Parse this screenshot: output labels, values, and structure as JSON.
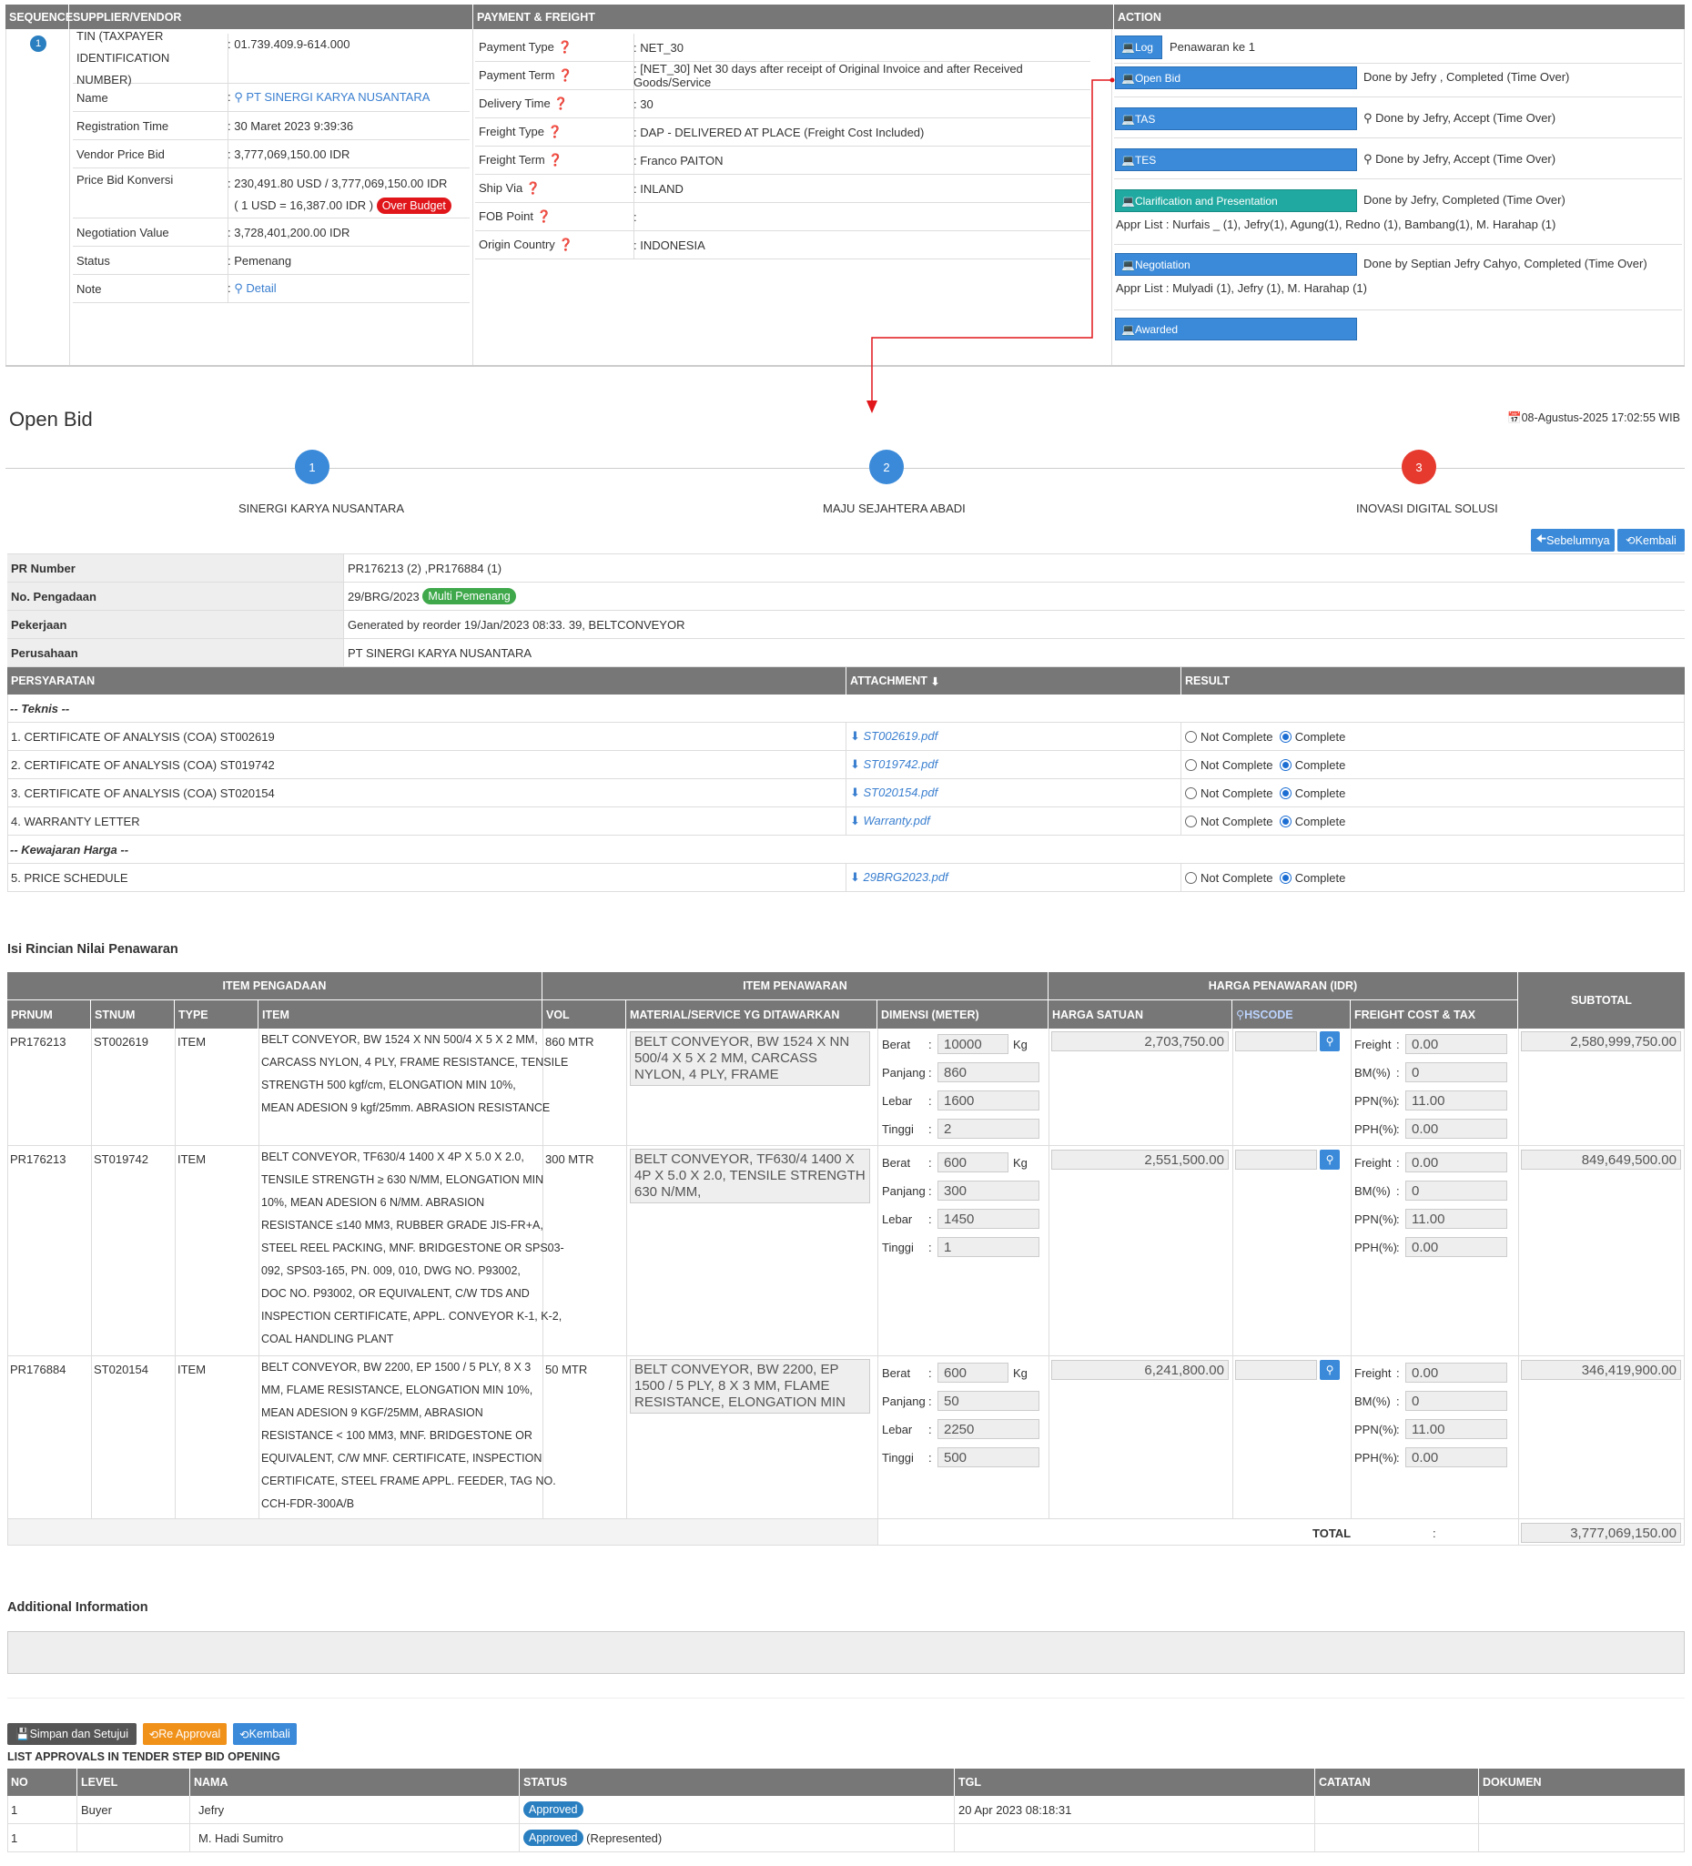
{
  "summary": {
    "headers": {
      "sequence": "SEQUENCE",
      "supplier": "SUPPLIER/VENDOR",
      "payment": "PAYMENT & FREIGHT",
      "action": "ACTION"
    },
    "seq_number": "1",
    "vendor": [
      {
        "key": "TIN (TAXPAYER IDENTIFICATION NUMBER)",
        "value": "01.739.409.9-614.000"
      },
      {
        "key": "Name",
        "value": "PT SINERGI KARYA NUSANTARA"
      },
      {
        "key": "Registration Time",
        "value": "30 Maret 2023 9:39:36"
      },
      {
        "key": "Vendor Price Bid",
        "value": "3,777,069,150.00 IDR"
      },
      {
        "key": "Price Bid Konversi",
        "value": "230,491.80 USD / 3,777,069,150.00 IDR",
        "value2": "( 1 USD = 16,387.00 IDR )",
        "badge": "Over Budget"
      },
      {
        "key": "Negotiation Value",
        "value": "3,728,401,200.00 IDR"
      },
      {
        "key": "Status",
        "value": "Pemenang"
      },
      {
        "key": "Note",
        "value": "Detail"
      }
    ],
    "payment": [
      {
        "key": "Payment Type",
        "value": "NET_30"
      },
      {
        "key": "Payment Term",
        "value": "[NET_30] Net 30 days after receipt of Original Invoice and after Received Goods/Service"
      },
      {
        "key": "Delivery Time",
        "value": "30"
      },
      {
        "key": "Freight Type",
        "value": "DAP - DELIVERED AT PLACE (Freight Cost Included)"
      },
      {
        "key": "Freight Term",
        "value": "Franco PAITON"
      },
      {
        "key": "Ship Via",
        "value": "INLAND"
      },
      {
        "key": "FOB Point",
        "value": ""
      },
      {
        "key": "Origin Country",
        "value": "INDONESIA"
      }
    ],
    "actions": {
      "log_label": "Log",
      "log_text": "Penawaran ke 1",
      "openbid_label": "Open Bid",
      "openbid_text": "Done by Jefry , Completed (Time Over)",
      "tas_label": "TAS",
      "tas_text": "Done by Jefry, Accept (Time Over)",
      "tes_label": "TES",
      "tes_text": "Done by Jefry, Accept (Time Over)",
      "clar_label": "Clarification and Presentation",
      "clar_text": "Done by Jefry, Completed (Time Over)",
      "clar_appr": "Appr List : Nurfais _ (1), Jefry(1), Agung(1), Redno (1), Bambang(1), M. Harahap (1)",
      "nego_label": "Negotiation",
      "nego_text": "Done by Septian Jefry Cahyo, Completed (Time Over)",
      "nego_appr": "Appr List : Mulyadi (1), Jefry (1), M. Harahap (1)",
      "awarded_label": "Awarded"
    }
  },
  "openbid": {
    "title": "Open Bid",
    "datetime": "08-Agustus-2025 17:02:55 WIB",
    "steps": [
      {
        "n": "1",
        "name": "SINERGI KARYA NUSANTARA"
      },
      {
        "n": "2",
        "name": "MAJU SEJAHTERA ABADI"
      },
      {
        "n": "3",
        "name": "INOVASI DIGITAL SOLUSI"
      }
    ],
    "prev_label": "Sebelumnya",
    "back_label": "Kembali",
    "info": [
      {
        "key": "PR Number",
        "value": "PR176213 (2) ,PR176884 (1)"
      },
      {
        "key": "No. Pengadaan",
        "value": "29/BRG/2023",
        "badge": "Multi Pemenang"
      },
      {
        "key": "Pekerjaan",
        "value": "Generated by reorder 19/Jan/2023 08:33. 39, BELTCONVEYOR"
      },
      {
        "key": "Perusahaan",
        "value": "PT SINERGI KARYA NUSANTARA"
      }
    ],
    "req_headers": {
      "req": "PERSYARATAN",
      "att": "ATTACHMENT",
      "res": "RESULT"
    },
    "group_teknis": "-- Teknis --",
    "group_harga": "-- Kewajaran Harga --",
    "not_complete": "Not Complete",
    "complete": "Complete",
    "requirements": [
      {
        "name": "1. CERTIFICATE OF ANALYSIS (COA) ST002619",
        "file": "ST002619.pdf"
      },
      {
        "name": "2. CERTIFICATE OF ANALYSIS (COA) ST019742",
        "file": "ST019742.pdf"
      },
      {
        "name": "3. CERTIFICATE OF ANALYSIS (COA) ST020154",
        "file": "ST020154.pdf"
      },
      {
        "name": "4. WARRANTY LETTER",
        "file": "Warranty.pdf"
      },
      {
        "name": "5. PRICE SCHEDULE",
        "file": "29BRG2023.pdf"
      }
    ]
  },
  "rincian": {
    "title": "Isi Rincian Nilai Penawaran",
    "group_headers": {
      "item_pengadaan": "ITEM PENGADAAN",
      "item_penawaran": "ITEM PENAWARAN",
      "harga": "HARGA PENAWARAN (IDR)",
      "subtotal": "SUBTOTAL"
    },
    "col_headers": {
      "prnum": "PRNUM",
      "stnum": "STNUM",
      "type": "TYPE",
      "item": "ITEM",
      "vol": "VOL",
      "material": "MATERIAL/SERVICE YG DITAWARKAN",
      "dimensi": "DIMENSI (METER)",
      "harga_satuan": "HARGA SATUAN",
      "hscode": "HSCODE",
      "freight": "FREIGHT COST & TAX"
    },
    "dim_labels": {
      "berat": "Berat",
      "panjang": "Panjang",
      "lebar": "Lebar",
      "tinggi": "Tinggi",
      "kg": "Kg"
    },
    "tax_labels": {
      "freight": "Freight",
      "bm": "BM(%)",
      "ppn": "PPN(%)",
      "pph": "PPH(%)"
    },
    "rows": [
      {
        "prnum": "PR176213",
        "stnum": "ST002619",
        "type": "ITEM",
        "item": [
          "BELT CONVEYOR, BW 1524 X NN 500/4 X 5 X 2 MM,",
          "CARCASS NYLON, 4 PLY, FRAME RESISTANCE, TENSILE",
          "STRENGTH 500 kgf/cm, ELONGATION MIN 10%,",
          "MEAN ADESION 9 kgf/25mm. ABRASION RESISTANCE"
        ],
        "vol": "860 MTR",
        "material": "BELT CONVEYOR, BW 1524 X NN 500/4 X 5 X 2 MM, CARCASS NYLON, 4 PLY, FRAME",
        "berat": "10000",
        "panjang": "860",
        "lebar": "1600",
        "tinggi": "2",
        "harga": "2,703,750.00",
        "freight": "0.00",
        "bm": "0",
        "ppn": "11.00",
        "pph": "0.00",
        "subtotal": "2,580,999,750.00"
      },
      {
        "prnum": "PR176213",
        "stnum": "ST019742",
        "type": "ITEM",
        "item": [
          "BELT CONVEYOR, TF630/4 1400 X 4P X 5.0 X 2.0,",
          "TENSILE STRENGTH ≥ 630 N/MM, ELONGATION MIN",
          "10%, MEAN ADESION 6 N/MM. ABRASION",
          "RESISTANCE ≤140 MM3, RUBBER GRADE JIS-FR+A,",
          "STEEL REEL PACKING, MNF. BRIDGESTONE OR SPS03-",
          "092, SPS03-165, PN. 009, 010, DWG NO. P93002,",
          "DOC NO. P93002, OR EQUIVALENT, C/W TDS AND",
          "INSPECTION CERTIFICATE, APPL. CONVEYOR K-1, K-2,",
          "COAL HANDLING PLANT"
        ],
        "vol": "300 MTR",
        "material": "BELT CONVEYOR, TF630/4 1400 X 4P X 5.0 X 2.0, TENSILE STRENGTH  630 N/MM,",
        "berat": "600",
        "panjang": "300",
        "lebar": "1450",
        "tinggi": "1",
        "harga": "2,551,500.00",
        "freight": "0.00",
        "bm": "0",
        "ppn": "11.00",
        "pph": "0.00",
        "subtotal": "849,649,500.00"
      },
      {
        "prnum": "PR176884",
        "stnum": "ST020154",
        "type": "ITEM",
        "item": [
          "BELT CONVEYOR, BW 2200, EP 1500 / 5 PLY, 8 X 3",
          "MM, FLAME RESISTANCE, ELONGATION MIN 10%,",
          "MEAN ADESION 9 KGF/25MM, ABRASION",
          "RESISTANCE < 100 MM3, MNF. BRIDGESTONE OR",
          "EQUIVALENT, C/W MNF. CERTIFICATE, INSPECTION",
          "CERTIFICATE, STEEL FRAME APPL. FEEDER, TAG NO.",
          "CCH-FDR-300A/B"
        ],
        "vol": "50 MTR",
        "material": "BELT CONVEYOR, BW 2200, EP 1500 / 5 PLY, 8 X 3 MM, FLAME RESISTANCE, ELONGATION MIN",
        "berat": "600",
        "panjang": "50",
        "lebar": "2250",
        "tinggi": "500",
        "harga": "6,241,800.00",
        "freight": "0.00",
        "bm": "0",
        "ppn": "11.00",
        "pph": "0.00",
        "subtotal": "346,419,900.00"
      }
    ],
    "total_label": "TOTAL",
    "total_colon": ":",
    "total_value": "3,777,069,150.00"
  },
  "additional": {
    "title": "Additional Information"
  },
  "buttons": {
    "save": "Simpan dan Setujui",
    "reapproval": "Re Approval",
    "kembali": "Kembali"
  },
  "approvals": {
    "title": "LIST APPROVALS IN TENDER STEP BID OPENING",
    "headers": {
      "no": "NO",
      "level": "LEVEL",
      "nama": "NAMA",
      "status": "STATUS",
      "tgl": "TGL",
      "catatan": "CATATAN",
      "dokumen": "DOKUMEN"
    },
    "rows": [
      {
        "no": "1",
        "level": "Buyer",
        "nama": "Jefry",
        "status": "Approved",
        "extra": "",
        "tgl": "20 Apr 2023 08:18:31"
      },
      {
        "no": "1",
        "level": "",
        "nama": "M. Hadi Sumitro",
        "status": "Approved",
        "extra": "(Represented)",
        "tgl": ""
      }
    ]
  },
  "colors": {
    "header_gray": "#777777",
    "accent_blue": "#3b8ad9",
    "teal": "#1fa9a0",
    "red": "#e0161b",
    "orange": "#f0911a",
    "green": "#3ea84b"
  }
}
